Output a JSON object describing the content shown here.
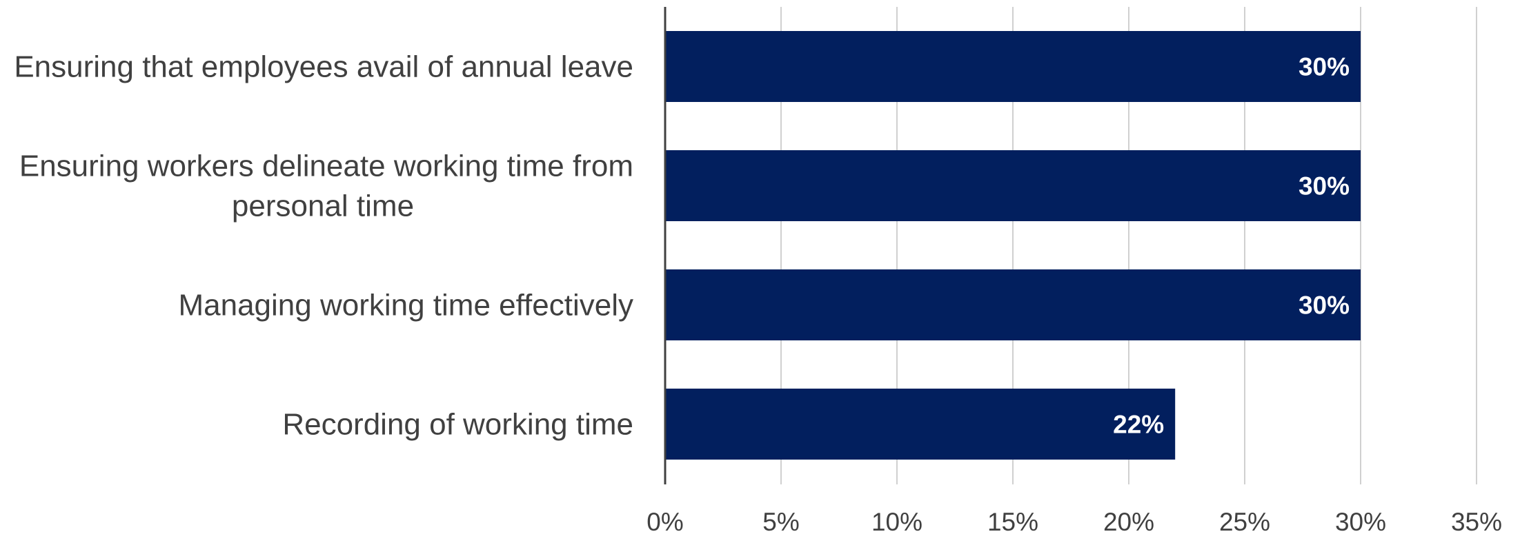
{
  "chart_data": {
    "type": "bar",
    "orientation": "horizontal",
    "categories": [
      [
        "Ensuring that employees avail of annual leave"
      ],
      [
        "Ensuring workers delineate working time from",
        "personal time"
      ],
      [
        "Managing working time effectively"
      ],
      [
        "Recording of working time"
      ]
    ],
    "values": [
      30,
      30,
      30,
      22
    ],
    "data_labels": [
      "30%",
      "30%",
      "30%",
      "22%"
    ],
    "xlim": [
      0,
      35
    ],
    "xticks": [
      0,
      5,
      10,
      15,
      20,
      25,
      30,
      35
    ],
    "xtick_labels": [
      "0%",
      "5%",
      "10%",
      "15%",
      "20%",
      "25%",
      "30%",
      "35%"
    ],
    "grid": "vertical",
    "legend": "none",
    "colors": {
      "bar": "#021f5e",
      "grid": "#d0d0d0",
      "axis": "#404040"
    }
  }
}
